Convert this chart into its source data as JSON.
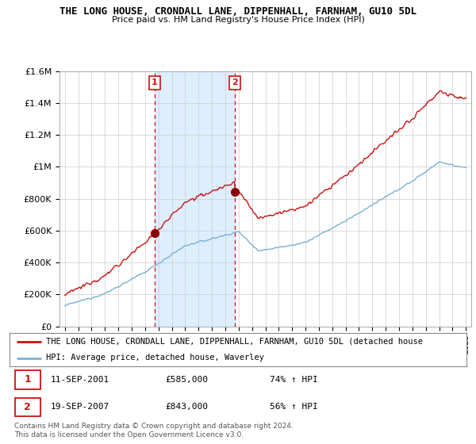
{
  "title": "THE LONG HOUSE, CRONDALL LANE, DIPPENHALL, FARNHAM, GU10 5DL",
  "subtitle": "Price paid vs. HM Land Registry's House Price Index (HPI)",
  "hpi_color": "#7ab0d4",
  "price_color": "#cc1111",
  "shade_color": "#ddeeff",
  "sale1_t": 2001.72,
  "sale1_p": 585000,
  "sale2_t": 2007.72,
  "sale2_p": 843000,
  "ylim_min": 0,
  "ylim_max": 1600000,
  "xlim_min": 1994.6,
  "xlim_max": 2025.4,
  "legend_line1": "THE LONG HOUSE, CRONDALL LANE, DIPPENHALL, FARNHAM, GU10 5DL (detached house",
  "legend_line2": "HPI: Average price, detached house, Waverley",
  "footnote": "Contains HM Land Registry data © Crown copyright and database right 2024.\nThis data is licensed under the Open Government Licence v3.0.",
  "yticks": [
    0,
    200000,
    400000,
    600000,
    800000,
    1000000,
    1200000,
    1400000,
    1600000
  ],
  "ytick_labels": [
    "£0",
    "£200K",
    "£400K",
    "£600K",
    "£800K",
    "£1M",
    "£1.2M",
    "£1.4M",
    "£1.6M"
  ]
}
